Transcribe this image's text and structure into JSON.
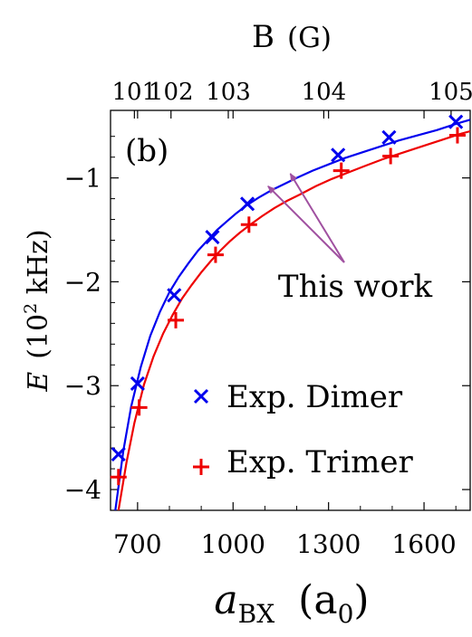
{
  "chart_data": {
    "type": "scatter",
    "panel_label": "(b)",
    "xlabel_main": "a",
    "xlabel_sub": "BX",
    "xlabel_unit_main": "(a",
    "xlabel_unit_sub": "0",
    "xlabel_unit_close": ")",
    "ylabel_var": "E",
    "ylabel_unit_pre": "(10",
    "ylabel_unit_exp": "2",
    "ylabel_unit_post": " kHz)",
    "top_axis_label_main": "B",
    "top_axis_label_unit": "(G)",
    "xlim": [
      615,
      1745
    ],
    "ylim": [
      -4.2,
      -0.35
    ],
    "x_ticks": [
      {
        "value": 700,
        "label": "700"
      },
      {
        "value": 1000,
        "label": "1000"
      },
      {
        "value": 1300,
        "label": "1300"
      },
      {
        "value": 1600,
        "label": "1600"
      }
    ],
    "y_ticks": [
      {
        "value": -1,
        "label": "−1"
      },
      {
        "value": -2,
        "label": "−2"
      },
      {
        "value": -3,
        "label": "−3"
      },
      {
        "value": -4,
        "label": "−4"
      }
    ],
    "top_ticks": [
      {
        "a": 690,
        "label": "101"
      },
      {
        "a": 805,
        "label": "102"
      },
      {
        "a": 985,
        "label": "103"
      },
      {
        "a": 1285,
        "label": "104"
      },
      {
        "a": 1685,
        "label": "105"
      }
    ],
    "series": [
      {
        "name": "Exp. Dimer",
        "color": "#0000ee",
        "marker": "x",
        "x": [
          640,
          700,
          815,
          935,
          1045,
          1330,
          1490,
          1700
        ],
        "y": [
          -3.66,
          -2.98,
          -2.13,
          -1.57,
          -1.25,
          -0.78,
          -0.61,
          -0.46
        ]
      },
      {
        "name": "Exp. Trimer",
        "color": "#ee0000",
        "marker": "+",
        "x": [
          640,
          705,
          820,
          945,
          1050,
          1340,
          1495,
          1705
        ],
        "y": [
          -3.88,
          -3.21,
          -2.37,
          -1.74,
          -1.45,
          -0.93,
          -0.79,
          -0.59
        ]
      }
    ],
    "curves": [
      {
        "color": "#0000ee",
        "x": [
          630,
          655,
          680,
          710,
          740,
          770,
          800,
          830,
          860,
          890,
          920,
          950,
          980,
          1010,
          1040,
          1080,
          1120,
          1160,
          1200,
          1250,
          1300,
          1350,
          1400,
          1460,
          1520,
          1580,
          1640,
          1700,
          1745
        ],
        "y": [
          -4.2,
          -3.63,
          -3.2,
          -2.82,
          -2.52,
          -2.29,
          -2.1,
          -1.95,
          -1.82,
          -1.7,
          -1.6,
          -1.5,
          -1.42,
          -1.34,
          -1.27,
          -1.19,
          -1.12,
          -1.06,
          -1.0,
          -0.93,
          -0.87,
          -0.81,
          -0.76,
          -0.7,
          -0.64,
          -0.59,
          -0.54,
          -0.48,
          -0.44
        ]
      },
      {
        "color": "#ee0000",
        "x": [
          640,
          665,
          690,
          720,
          750,
          780,
          810,
          840,
          870,
          900,
          930,
          960,
          990,
          1020,
          1050,
          1090,
          1130,
          1170,
          1210,
          1260,
          1310,
          1360,
          1410,
          1470,
          1530,
          1590,
          1650,
          1710,
          1745
        ],
        "y": [
          -4.2,
          -3.74,
          -3.36,
          -2.99,
          -2.72,
          -2.5,
          -2.32,
          -2.16,
          -2.03,
          -1.91,
          -1.8,
          -1.7,
          -1.61,
          -1.53,
          -1.46,
          -1.37,
          -1.29,
          -1.22,
          -1.16,
          -1.08,
          -1.01,
          -0.95,
          -0.89,
          -0.82,
          -0.76,
          -0.7,
          -0.64,
          -0.58,
          -0.55
        ]
      }
    ],
    "annotation": {
      "text": "This work",
      "color": "#a050a0",
      "arrow_targets": [
        {
          "x": 1110,
          "y": -1.08
        },
        {
          "x": 1180,
          "y": -0.96
        }
      ]
    },
    "legend_position": "bottom-right",
    "grid": false
  }
}
